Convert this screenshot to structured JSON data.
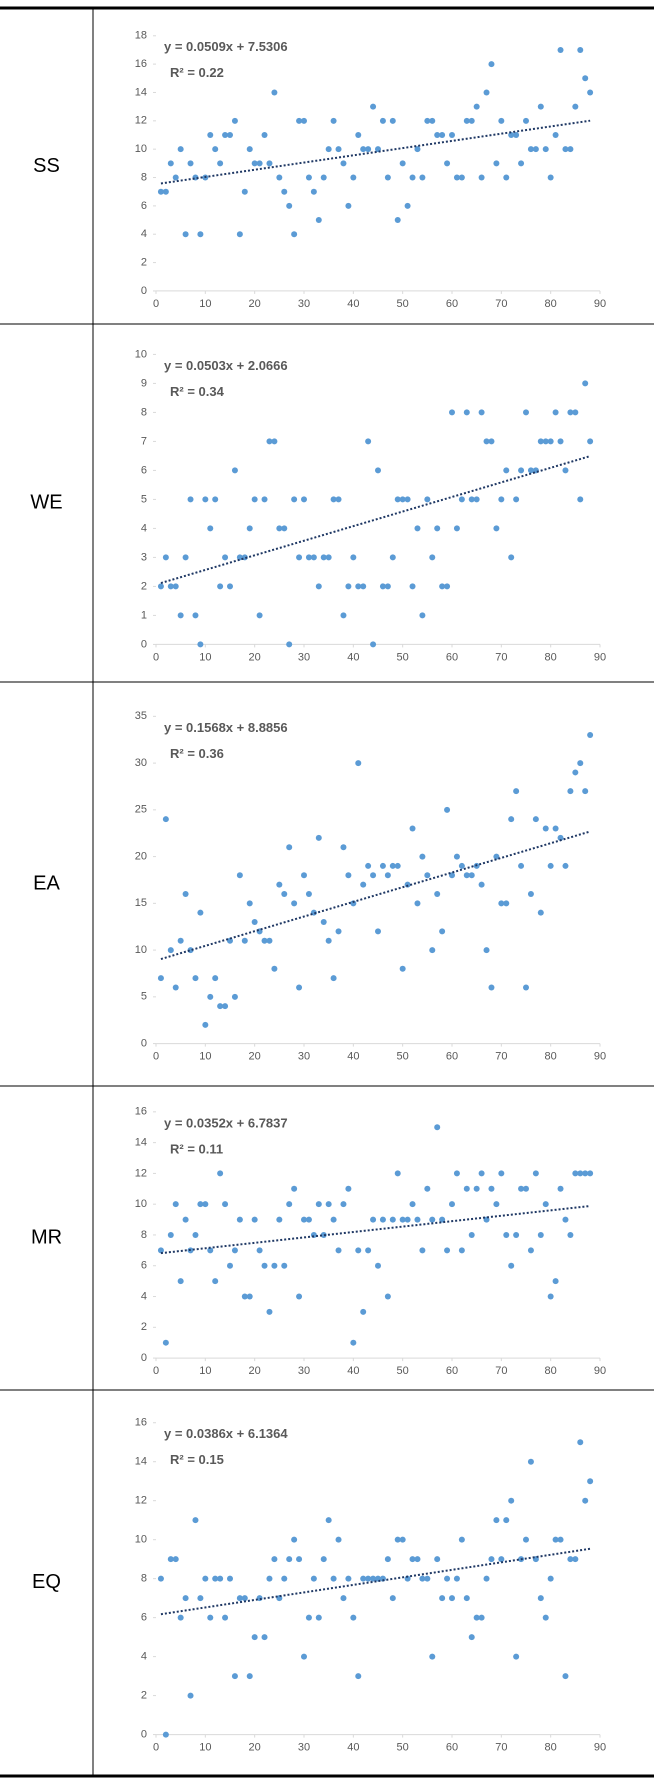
{
  "chart_data": [
    {
      "type": "scatter",
      "label": "SS",
      "color": "#5b9bd5",
      "trendline": {
        "label": "y = 0.0509x + 7.5306",
        "slope": 0.0509,
        "intercept": 7.5306,
        "r2_label": "R² = 0.22",
        "color": "#1f3864"
      },
      "xlim": [
        0,
        90
      ],
      "xticks": [
        0,
        10,
        20,
        30,
        40,
        50,
        60,
        70,
        80,
        90
      ],
      "ylim": [
        0,
        18
      ],
      "yticks": [
        0,
        2,
        4,
        6,
        8,
        10,
        12,
        14,
        16,
        18
      ],
      "x": [
        1,
        2,
        3,
        4,
        5,
        6,
        7,
        8,
        9,
        10,
        11,
        12,
        13,
        14,
        15,
        16,
        17,
        18,
        19,
        20,
        21,
        22,
        23,
        24,
        25,
        26,
        27,
        28,
        29,
        30,
        31,
        32,
        33,
        34,
        35,
        36,
        37,
        38,
        39,
        40,
        41,
        42,
        43,
        44,
        45,
        46,
        47,
        48,
        49,
        50,
        51,
        52,
        53,
        54,
        55,
        56,
        57,
        58,
        59,
        60,
        61,
        62,
        63,
        64,
        65,
        66,
        67,
        68,
        69,
        70,
        71,
        72,
        73,
        74,
        75,
        76,
        77,
        78,
        79,
        80,
        81,
        82,
        83,
        84,
        85,
        86,
        87,
        88
      ],
      "values": [
        7,
        7,
        9,
        8,
        10,
        4,
        9,
        8,
        4,
        8,
        11,
        10,
        9,
        11,
        11,
        12,
        4,
        7,
        10,
        9,
        9,
        11,
        9,
        14,
        8,
        7,
        6,
        4,
        12,
        12,
        8,
        7,
        5,
        8,
        10,
        12,
        10,
        9,
        6,
        8,
        11,
        10,
        10,
        13,
        10,
        12,
        8,
        12,
        5,
        9,
        6,
        8,
        10,
        8,
        12,
        12,
        11,
        11,
        9,
        11,
        8,
        8,
        12,
        12,
        13,
        8,
        14,
        16,
        9,
        12,
        8,
        11,
        11,
        9,
        12,
        10,
        10,
        13,
        10,
        8,
        11,
        17,
        10,
        10,
        13,
        17,
        15,
        14
      ]
    },
    {
      "type": "scatter",
      "label": "WE",
      "color": "#5b9bd5",
      "trendline": {
        "label": "y = 0.0503x + 2.0666",
        "slope": 0.0503,
        "intercept": 2.0666,
        "r2_label": "R² = 0.34",
        "color": "#1f3864"
      },
      "xlim": [
        0,
        90
      ],
      "xticks": [
        0,
        10,
        20,
        30,
        40,
        50,
        60,
        70,
        80,
        90
      ],
      "ylim": [
        0,
        10
      ],
      "yticks": [
        0,
        1,
        2,
        3,
        4,
        5,
        6,
        7,
        8,
        9,
        10
      ],
      "x": [
        1,
        2,
        3,
        4,
        5,
        6,
        7,
        8,
        9,
        10,
        11,
        12,
        13,
        14,
        15,
        16,
        17,
        18,
        19,
        20,
        21,
        22,
        23,
        24,
        25,
        26,
        27,
        28,
        29,
        30,
        31,
        32,
        33,
        34,
        35,
        36,
        37,
        38,
        39,
        40,
        41,
        42,
        43,
        44,
        45,
        46,
        47,
        48,
        49,
        50,
        51,
        52,
        53,
        54,
        55,
        56,
        57,
        58,
        59,
        60,
        61,
        62,
        63,
        64,
        65,
        66,
        67,
        68,
        69,
        70,
        71,
        72,
        73,
        74,
        75,
        76,
        77,
        78,
        79,
        80,
        81,
        82,
        83,
        84,
        85,
        86,
        87,
        88
      ],
      "values": [
        2,
        3,
        2,
        2,
        1,
        3,
        5,
        1,
        0,
        5,
        4,
        5,
        2,
        3,
        2,
        6,
        3,
        3,
        4,
        5,
        1,
        5,
        7,
        7,
        4,
        4,
        0,
        5,
        3,
        5,
        3,
        3,
        2,
        3,
        3,
        5,
        5,
        1,
        2,
        3,
        2,
        2,
        7,
        0,
        6,
        2,
        2,
        3,
        5,
        5,
        5,
        2,
        4,
        1,
        5,
        3,
        4,
        2,
        2,
        8,
        4,
        5,
        8,
        5,
        5,
        8,
        7,
        7,
        4,
        5,
        6,
        3,
        5,
        6,
        8,
        6,
        6,
        7,
        7,
        7,
        8,
        7,
        6,
        8,
        8,
        5,
        9,
        7
      ]
    },
    {
      "type": "scatter",
      "label": "EA",
      "color": "#5b9bd5",
      "trendline": {
        "label": "y = 0.1568x + 8.8856",
        "slope": 0.1568,
        "intercept": 8.8856,
        "r2_label": "R² = 0.36",
        "color": "#1f3864"
      },
      "xlim": [
        0,
        90
      ],
      "xticks": [
        0,
        10,
        20,
        30,
        40,
        50,
        60,
        70,
        80,
        90
      ],
      "ylim": [
        0,
        35
      ],
      "yticks": [
        0,
        5,
        10,
        15,
        20,
        25,
        30,
        35
      ],
      "x": [
        1,
        2,
        3,
        4,
        5,
        6,
        7,
        8,
        9,
        10,
        11,
        12,
        13,
        14,
        15,
        16,
        17,
        18,
        19,
        20,
        21,
        22,
        23,
        24,
        25,
        26,
        27,
        28,
        29,
        30,
        31,
        32,
        33,
        34,
        35,
        36,
        37,
        38,
        39,
        40,
        41,
        42,
        43,
        44,
        45,
        46,
        47,
        48,
        49,
        50,
        51,
        52,
        53,
        54,
        55,
        56,
        57,
        58,
        59,
        60,
        61,
        62,
        63,
        64,
        65,
        66,
        67,
        68,
        69,
        70,
        71,
        72,
        73,
        74,
        75,
        76,
        77,
        78,
        79,
        80,
        81,
        82,
        83,
        84,
        85,
        86,
        87,
        88
      ],
      "values": [
        7,
        24,
        10,
        6,
        11,
        16,
        10,
        7,
        14,
        2,
        5,
        7,
        4,
        4,
        11,
        5,
        18,
        11,
        15,
        13,
        12,
        11,
        11,
        8,
        17,
        16,
        21,
        15,
        6,
        18,
        16,
        14,
        22,
        13,
        11,
        7,
        12,
        21,
        18,
        15,
        30,
        17,
        19,
        18,
        12,
        19,
        18,
        19,
        19,
        8,
        17,
        23,
        15,
        20,
        18,
        10,
        16,
        12,
        25,
        18,
        20,
        19,
        18,
        18,
        19,
        17,
        10,
        6,
        20,
        15,
        15,
        24,
        27,
        19,
        6,
        16,
        24,
        14,
        23,
        19,
        23,
        22,
        19,
        27,
        29,
        30,
        27,
        33
      ]
    },
    {
      "type": "scatter",
      "label": "MR",
      "color": "#5b9bd5",
      "trendline": {
        "label": "y = 0.0352x + 6.7837",
        "slope": 0.0352,
        "intercept": 6.7837,
        "r2_label": "R² = 0.11",
        "color": "#1f3864"
      },
      "xlim": [
        0,
        90
      ],
      "xticks": [
        0,
        10,
        20,
        30,
        40,
        50,
        60,
        70,
        80,
        90
      ],
      "ylim": [
        0,
        16
      ],
      "yticks": [
        0,
        2,
        4,
        6,
        8,
        10,
        12,
        14,
        16
      ],
      "x": [
        1,
        2,
        3,
        4,
        5,
        6,
        7,
        8,
        9,
        10,
        11,
        12,
        13,
        14,
        15,
        16,
        17,
        18,
        19,
        20,
        21,
        22,
        23,
        24,
        25,
        26,
        27,
        28,
        29,
        30,
        31,
        32,
        33,
        34,
        35,
        36,
        37,
        38,
        39,
        40,
        41,
        42,
        43,
        44,
        45,
        46,
        47,
        48,
        49,
        50,
        51,
        52,
        53,
        54,
        55,
        56,
        57,
        58,
        59,
        60,
        61,
        62,
        63,
        64,
        65,
        66,
        67,
        68,
        69,
        70,
        71,
        72,
        73,
        74,
        75,
        76,
        77,
        78,
        79,
        80,
        81,
        82,
        83,
        84,
        85,
        86,
        87,
        88
      ],
      "values": [
        7,
        1,
        8,
        10,
        5,
        9,
        7,
        8,
        10,
        10,
        7,
        5,
        12,
        10,
        6,
        7,
        9,
        4,
        4,
        9,
        7,
        6,
        3,
        6,
        9,
        6,
        10,
        11,
        4,
        9,
        9,
        8,
        10,
        8,
        10,
        9,
        7,
        10,
        11,
        1,
        7,
        3,
        7,
        9,
        6,
        9,
        4,
        9,
        12,
        9,
        9,
        10,
        9,
        7,
        11,
        9,
        15,
        9,
        7,
        10,
        12,
        7,
        11,
        8,
        11,
        12,
        9,
        11,
        10,
        12,
        8,
        6,
        8,
        11,
        11,
        7,
        12,
        8,
        10,
        4,
        5,
        11,
        9,
        8,
        12,
        12,
        12,
        12
      ]
    },
    {
      "type": "scatter",
      "label": "EQ",
      "color": "#5b9bd5",
      "trendline": {
        "label": "y = 0.0386x + 6.1364",
        "slope": 0.0386,
        "intercept": 6.1364,
        "r2_label": "R² = 0.15",
        "color": "#1f3864"
      },
      "xlim": [
        0,
        90
      ],
      "xticks": [
        0,
        10,
        20,
        30,
        40,
        50,
        60,
        70,
        80,
        90
      ],
      "ylim": [
        0,
        16
      ],
      "yticks": [
        0,
        2,
        4,
        6,
        8,
        10,
        12,
        14,
        16
      ],
      "x": [
        1,
        2,
        3,
        4,
        5,
        6,
        7,
        8,
        9,
        10,
        11,
        12,
        13,
        14,
        15,
        16,
        17,
        18,
        19,
        20,
        21,
        22,
        23,
        24,
        25,
        26,
        27,
        28,
        29,
        30,
        31,
        32,
        33,
        34,
        35,
        36,
        37,
        38,
        39,
        40,
        41,
        42,
        43,
        44,
        45,
        46,
        47,
        48,
        49,
        50,
        51,
        52,
        53,
        54,
        55,
        56,
        57,
        58,
        59,
        60,
        61,
        62,
        63,
        64,
        65,
        66,
        67,
        68,
        69,
        70,
        71,
        72,
        73,
        74,
        75,
        76,
        77,
        78,
        79,
        80,
        81,
        82,
        83,
        84,
        85,
        86,
        87,
        88
      ],
      "values": [
        8,
        0,
        9,
        9,
        6,
        7,
        2,
        11,
        7,
        8,
        6,
        8,
        8,
        6,
        8,
        3,
        7,
        7,
        3,
        5,
        7,
        5,
        8,
        9,
        7,
        8,
        9,
        10,
        9,
        4,
        6,
        8,
        6,
        9,
        11,
        8,
        10,
        7,
        8,
        6,
        3,
        8,
        8,
        8,
        8,
        8,
        9,
        7,
        10,
        10,
        8,
        9,
        9,
        8,
        8,
        4,
        9,
        7,
        8,
        7,
        8,
        10,
        7,
        5,
        6,
        6,
        8,
        9,
        11,
        9,
        11,
        12,
        4,
        9,
        10,
        14,
        9,
        7,
        6,
        8,
        10,
        10,
        3,
        9,
        9,
        15,
        12,
        13
      ]
    }
  ]
}
